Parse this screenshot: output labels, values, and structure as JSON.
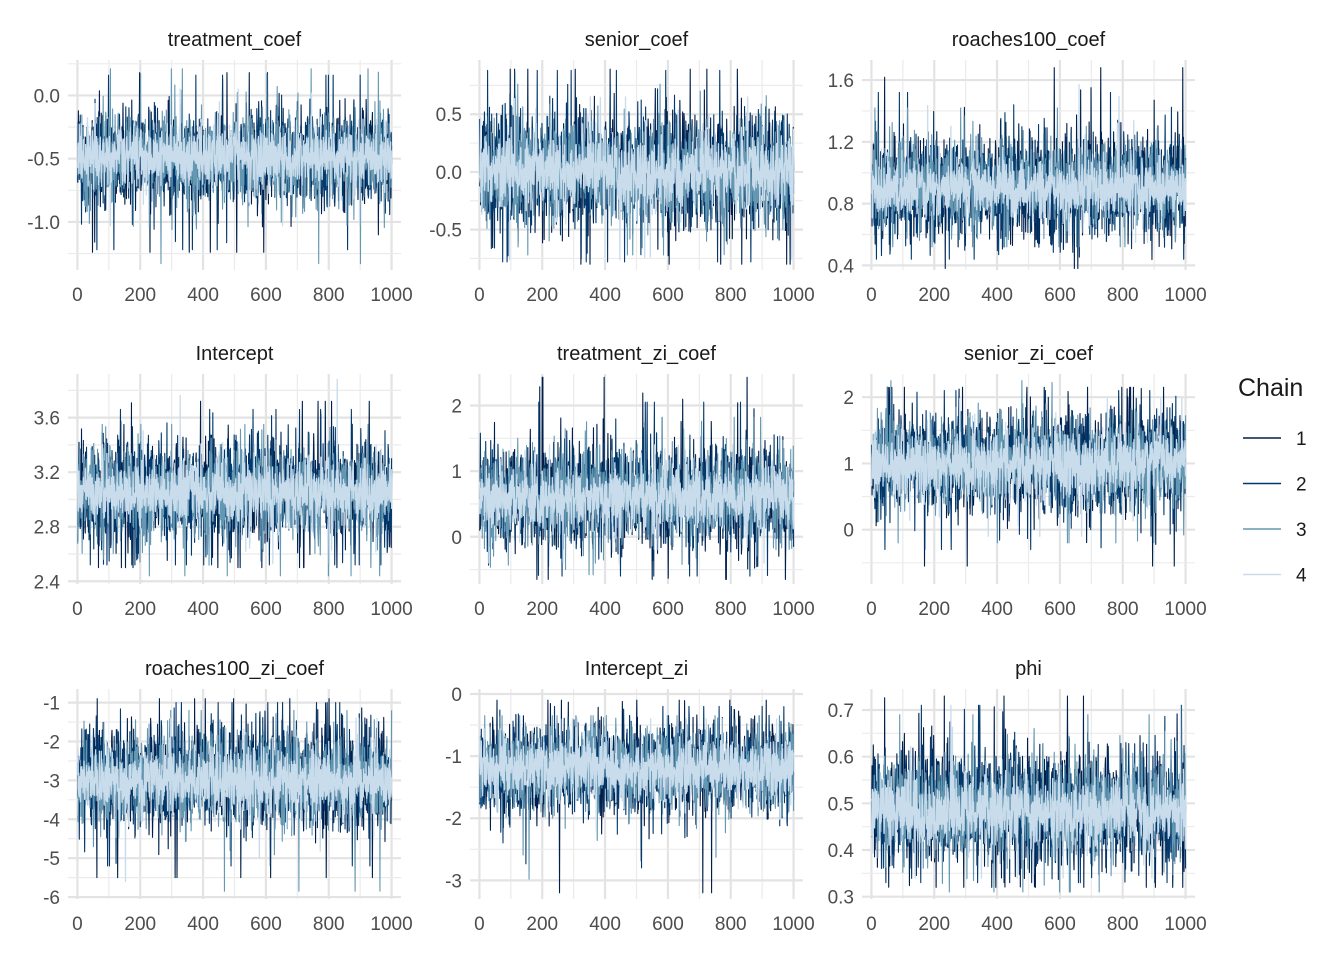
{
  "chart_data": {
    "type": "line",
    "iterations": {
      "start": 1,
      "end": 1000,
      "step": 1
    },
    "legend": {
      "title": "Chain",
      "position": "right",
      "entries": [
        {
          "label": "1",
          "color": "#011f4b"
        },
        {
          "label": "2",
          "color": "#03396c"
        },
        {
          "label": "3",
          "color": "#6497b1"
        },
        {
          "label": "4",
          "color": "#c9dcec"
        }
      ]
    },
    "grid": true,
    "panels": [
      {
        "title": "treatment_coef",
        "xlim": [
          -30,
          1030
        ],
        "xticks": [
          "0",
          "200",
          "400",
          "600",
          "800",
          "1000"
        ],
        "xtick_values": [
          0,
          200,
          400,
          600,
          800,
          1000
        ],
        "ylim": [
          -1.38,
          0.28
        ],
        "yticks": [
          "0.0",
          "-0.5",
          "-1.0"
        ],
        "ytick_values": [
          0.0,
          -0.5,
          -1.0
        ],
        "chains": [
          {
            "chain": "1",
            "mean": -0.5,
            "sd": 0.2,
            "range": [
              -1.24,
              0.18
            ]
          },
          {
            "chain": "2",
            "mean": -0.5,
            "sd": 0.2,
            "range": [
              -1.22,
              0.16
            ]
          },
          {
            "chain": "3",
            "mean": -0.5,
            "sd": 0.2,
            "range": [
              -1.33,
              0.21
            ]
          },
          {
            "chain": "4",
            "mean": -0.48,
            "sd": 0.13,
            "range": [
              -1.03,
              0.05
            ]
          }
        ]
      },
      {
        "title": "senior_coef",
        "xlim": [
          -30,
          1030
        ],
        "xticks": [
          "0",
          "200",
          "400",
          "600",
          "800",
          "1000"
        ],
        "xtick_values": [
          0,
          200,
          400,
          600,
          800,
          1000
        ],
        "ylim": [
          -0.85,
          0.97
        ],
        "yticks": [
          "0.5",
          "0.0",
          "-0.5"
        ],
        "ytick_values": [
          0.5,
          0.0,
          -0.5
        ],
        "chains": [
          {
            "chain": "1",
            "mean": 0.02,
            "sd": 0.27,
            "range": [
              -0.8,
              0.89
            ]
          },
          {
            "chain": "2",
            "mean": 0.02,
            "sd": 0.27,
            "range": [
              -0.78,
              0.88
            ]
          },
          {
            "chain": "3",
            "mean": 0.0,
            "sd": 0.25,
            "range": [
              -0.72,
              0.76
            ]
          },
          {
            "chain": "4",
            "mean": 0.0,
            "sd": 0.18,
            "range": [
              -0.76,
              0.65
            ]
          }
        ]
      },
      {
        "title": "roaches100_coef",
        "xlim": [
          -30,
          1030
        ],
        "xticks": [
          "0",
          "200",
          "400",
          "600",
          "800",
          "1000"
        ],
        "xtick_values": [
          0,
          200,
          400,
          600,
          800,
          1000
        ],
        "ylim": [
          0.37,
          1.73
        ],
        "yticks": [
          "1.6",
          "1.2",
          "0.8",
          "0.4"
        ],
        "ytick_values": [
          1.6,
          1.2,
          0.8,
          0.4
        ],
        "chains": [
          {
            "chain": "1",
            "mean": 0.92,
            "sd": 0.18,
            "range": [
              0.38,
              1.68
            ]
          },
          {
            "chain": "2",
            "mean": 0.92,
            "sd": 0.18,
            "range": [
              0.44,
              1.52
            ]
          },
          {
            "chain": "3",
            "mean": 0.92,
            "sd": 0.16,
            "range": [
              0.52,
              1.42
            ]
          },
          {
            "chain": "4",
            "mean": 0.9,
            "sd": 0.11,
            "range": [
              0.55,
              1.57
            ]
          }
        ]
      },
      {
        "title": "Intercept",
        "xlim": [
          -30,
          1030
        ],
        "xticks": [
          "0",
          "200",
          "400",
          "600",
          "800",
          "1000"
        ],
        "xtick_values": [
          0,
          200,
          400,
          600,
          800,
          1000
        ],
        "ylim": [
          2.38,
          3.92
        ],
        "yticks": [
          "3.6",
          "3.2",
          "2.8",
          "2.4"
        ],
        "ytick_values": [
          3.6,
          3.2,
          2.8,
          2.4
        ],
        "chains": [
          {
            "chain": "1",
            "mean": 3.06,
            "sd": 0.21,
            "range": [
              2.5,
              3.72
            ]
          },
          {
            "chain": "2",
            "mean": 3.06,
            "sd": 0.21,
            "range": [
              2.52,
              3.66
            ]
          },
          {
            "chain": "3",
            "mean": 3.05,
            "sd": 0.19,
            "range": [
              2.44,
              3.55
            ]
          },
          {
            "chain": "4",
            "mean": 3.05,
            "sd": 0.13,
            "range": [
              2.53,
              3.88
            ]
          }
        ]
      },
      {
        "title": "treatment_zi_coef",
        "xlim": [
          -30,
          1030
        ],
        "xticks": [
          "0",
          "200",
          "400",
          "600",
          "800",
          "1000"
        ],
        "xtick_values": [
          0,
          200,
          400,
          600,
          800,
          1000
        ],
        "ylim": [
          -0.72,
          2.48
        ],
        "yticks": [
          "2",
          "1",
          "0"
        ],
        "ytick_values": [
          2,
          1,
          0
        ],
        "chains": [
          {
            "chain": "1",
            "mean": 0.62,
            "sd": 0.42,
            "range": [
              -0.65,
              2.43
            ]
          },
          {
            "chain": "2",
            "mean": 0.62,
            "sd": 0.42,
            "range": [
              -0.6,
              2.05
            ]
          },
          {
            "chain": "3",
            "mean": 0.62,
            "sd": 0.4,
            "range": [
              -0.58,
              1.82
            ]
          },
          {
            "chain": "4",
            "mean": 0.6,
            "sd": 0.27,
            "range": [
              -0.4,
              1.4
            ]
          }
        ]
      },
      {
        "title": "senior_zi_coef",
        "xlim": [
          -30,
          1030
        ],
        "xticks": [
          "0",
          "200",
          "400",
          "600",
          "800",
          "1000"
        ],
        "xtick_values": [
          0,
          200,
          400,
          600,
          800,
          1000
        ],
        "ylim": [
          -0.82,
          2.35
        ],
        "yticks": [
          "2",
          "1",
          "0"
        ],
        "ytick_values": [
          2,
          1,
          0
        ],
        "chains": [
          {
            "chain": "1",
            "mean": 1.0,
            "sd": 0.42,
            "range": [
              -0.55,
              2.15
            ]
          },
          {
            "chain": "2",
            "mean": 1.0,
            "sd": 0.42,
            "range": [
              -0.3,
              2.1
            ]
          },
          {
            "chain": "3",
            "mean": 1.0,
            "sd": 0.4,
            "range": [
              -0.2,
              2.25
            ]
          },
          {
            "chain": "4",
            "mean": 0.98,
            "sd": 0.27,
            "range": [
              -0.1,
              1.98
            ]
          }
        ]
      },
      {
        "title": "roaches100_zi_coef",
        "xlim": [
          -30,
          1030
        ],
        "xticks": [
          "0",
          "200",
          "400",
          "600",
          "800",
          "1000"
        ],
        "xtick_values": [
          0,
          200,
          400,
          600,
          800,
          1000
        ],
        "ylim": [
          -6.05,
          -0.65
        ],
        "yticks": [
          "-1",
          "-2",
          "-3",
          "-4",
          "-5",
          "-6"
        ],
        "ytick_values": [
          -1,
          -2,
          -3,
          -4,
          -5,
          -6
        ],
        "chains": [
          {
            "chain": "1",
            "mean": -2.9,
            "sd": 0.7,
            "range": [
              -5.5,
              -0.9
            ]
          },
          {
            "chain": "2",
            "mean": -2.9,
            "sd": 0.7,
            "range": [
              -5.2,
              -1.0
            ]
          },
          {
            "chain": "3",
            "mean": -3.0,
            "sd": 0.65,
            "range": [
              -5.85,
              -1.2
            ]
          },
          {
            "chain": "4",
            "mean": -3.0,
            "sd": 0.45,
            "range": [
              -5.6,
              -1.4
            ]
          }
        ]
      },
      {
        "title": "Intercept_zi",
        "xlim": [
          -30,
          1030
        ],
        "xticks": [
          "0",
          "200",
          "400",
          "600",
          "800",
          "1000"
        ],
        "xtick_values": [
          0,
          200,
          400,
          600,
          800,
          1000
        ],
        "ylim": [
          -3.3,
          0.08
        ],
        "yticks": [
          "0",
          "-1",
          "-2",
          "-3"
        ],
        "ytick_values": [
          0,
          -1,
          -2,
          -3
        ],
        "chains": [
          {
            "chain": "1",
            "mean": -1.2,
            "sd": 0.4,
            "range": [
              -3.2,
              -0.1
            ]
          },
          {
            "chain": "2",
            "mean": -1.2,
            "sd": 0.4,
            "range": [
              -2.8,
              -0.2
            ]
          },
          {
            "chain": "3",
            "mean": -1.2,
            "sd": 0.38,
            "range": [
              -2.98,
              -0.35
            ]
          },
          {
            "chain": "4",
            "mean": -1.2,
            "sd": 0.26,
            "range": [
              -2.2,
              -0.4
            ]
          }
        ]
      },
      {
        "title": "phi",
        "xlim": [
          -30,
          1030
        ],
        "xticks": [
          "0",
          "200",
          "400",
          "600",
          "800",
          "1000"
        ],
        "xtick_values": [
          0,
          200,
          400,
          600,
          800,
          1000
        ],
        "ylim": [
          0.295,
          0.745
        ],
        "yticks": [
          "0.7",
          "0.6",
          "0.5",
          "0.4",
          "0.3"
        ],
        "ytick_values": [
          0.7,
          0.6,
          0.5,
          0.4,
          0.3
        ],
        "chains": [
          {
            "chain": "1",
            "mean": 0.49,
            "sd": 0.065,
            "range": [
              0.32,
              0.73
            ]
          },
          {
            "chain": "2",
            "mean": 0.49,
            "sd": 0.065,
            "range": [
              0.33,
              0.71
            ]
          },
          {
            "chain": "3",
            "mean": 0.49,
            "sd": 0.06,
            "range": [
              0.31,
              0.69
            ]
          },
          {
            "chain": "4",
            "mean": 0.48,
            "sd": 0.04,
            "range": [
              0.34,
              0.71
            ]
          }
        ]
      }
    ]
  }
}
